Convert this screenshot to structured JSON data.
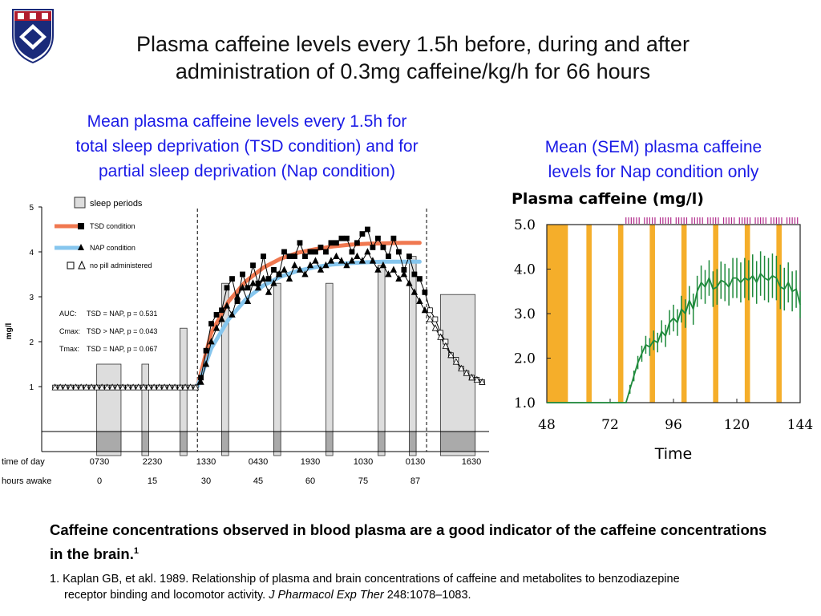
{
  "title": {
    "line1": "Plasma caffeine levels every 1.5h before, during and after",
    "line2": "administration of 0.3mg caffeine/kg/h for 66 hours"
  },
  "left_subtitle": {
    "line1": "Mean plasma caffeine levels every 1.5h for",
    "line2": "total sleep deprivation (TSD condition) and for",
    "line3": "partial sleep deprivation (Nap condition)"
  },
  "right_subtitle": {
    "line1": "Mean (SEM) plasma caffeine",
    "line2": "levels for Nap condition only"
  },
  "colors": {
    "title_text": "#111111",
    "subtitle_blue": "#1a1ae6",
    "tsd_fit": "#f07850",
    "nap_fit": "#86c6ee",
    "sleep_box": "#dddddd",
    "nap_bar": "#f5ae2a",
    "nap_line": "#1f8a3c",
    "tick_marks": "#b02a8a"
  },
  "chart_data": [
    {
      "type": "line",
      "ylabel": "mg/l",
      "ylim": [
        0,
        5
      ],
      "yticks": [
        "1",
        "2",
        "3",
        "4",
        "5"
      ],
      "xlim_hours_awake": [
        -22,
        105
      ],
      "legend": {
        "sleep": "sleep periods",
        "tsd": "TSD condition",
        "nap": "NAP condition",
        "nopill": "no pill administered",
        "placement": "top-left"
      },
      "stats": [
        {
          "label": "AUC:",
          "text": "TSD = NAP,  p = 0.531"
        },
        {
          "label": "Cmax:",
          "text": "TSD > NAP,  p = 0.043"
        },
        {
          "label": "Tmax:",
          "text": "TSD = NAP,  p = 0.067"
        }
      ],
      "time_of_day_label": "time of day",
      "time_of_day": [
        "0730",
        "2230",
        "1330",
        "0430",
        "1930",
        "1030",
        "0130",
        "1630"
      ],
      "hours_awake_label": "hours awake",
      "hours_awake": [
        "0",
        "15",
        "30",
        "45",
        "60",
        "75",
        "87",
        ""
      ],
      "sleep_periods_hours": [
        [
          -8,
          -1
        ],
        [
          5,
          7
        ],
        [
          16,
          18
        ],
        [
          28,
          30
        ],
        [
          43,
          45
        ],
        [
          58,
          60
        ],
        [
          73,
          75
        ],
        [
          82,
          84
        ],
        [
          91,
          101
        ]
      ],
      "dosing_window_hours": [
        21,
        87
      ],
      "tsd_series": {
        "x": [
          -20,
          -18.5,
          -17,
          -15.5,
          -14,
          -12.5,
          -11,
          -9.5,
          -8,
          -6.5,
          -5,
          -3.5,
          -2,
          -0.5,
          1,
          2.5,
          4,
          5.5,
          7,
          8.5,
          10,
          11.5,
          13,
          14.5,
          16,
          17.5,
          19,
          20.5,
          22,
          23.5,
          25,
          26.5,
          28,
          29.5,
          31,
          32.5,
          34,
          35.5,
          37,
          38.5,
          40,
          41.5,
          43,
          44.5,
          46,
          47.5,
          49,
          50.5,
          52,
          53.5,
          55,
          56.5,
          58,
          59.5,
          61,
          62.5,
          64,
          65.5,
          67,
          68.5,
          70,
          71.5,
          73,
          74.5,
          76,
          77.5,
          79,
          80.5,
          82,
          83.5,
          85,
          86.5,
          88,
          89.5,
          91,
          92.5,
          94,
          95.5,
          97,
          98.5,
          100,
          101.5,
          103
        ],
        "y": [
          0.98,
          0.98,
          0.98,
          0.98,
          0.98,
          0.98,
          0.98,
          0.98,
          0.98,
          0.98,
          0.98,
          0.98,
          0.98,
          0.98,
          0.98,
          0.98,
          0.98,
          0.98,
          0.98,
          0.98,
          0.98,
          0.98,
          0.98,
          0.98,
          0.98,
          0.98,
          0.98,
          0.98,
          1.2,
          1.8,
          2.4,
          2.6,
          2.7,
          3.2,
          3.4,
          2.9,
          3.5,
          3.2,
          3.7,
          3.3,
          3.9,
          3.4,
          3.6,
          3.5,
          4.0,
          3.9,
          3.9,
          4.2,
          3.9,
          4.0,
          4.0,
          4.1,
          4.0,
          4.2,
          4.2,
          4.3,
          4.3,
          4.0,
          4.2,
          4.4,
          4.5,
          4.1,
          4.3,
          4.1,
          3.9,
          4.3,
          4.0,
          3.6,
          3.9,
          3.5,
          3.4,
          3.1,
          2.7,
          2.5,
          2.2,
          2.0,
          1.7,
          1.6,
          1.4,
          1.3,
          1.2,
          1.15,
          1.1
        ]
      },
      "nap_series": {
        "x": [
          -20,
          -18.5,
          -17,
          -15.5,
          -14,
          -12.5,
          -11,
          -9.5,
          -8,
          -6.5,
          -5,
          -3.5,
          -2,
          -0.5,
          1,
          2.5,
          4,
          5.5,
          7,
          8.5,
          10,
          11.5,
          13,
          14.5,
          16,
          17.5,
          19,
          20.5,
          22,
          23.5,
          25,
          26.5,
          28,
          29.5,
          31,
          32.5,
          34,
          35.5,
          37,
          38.5,
          40,
          41.5,
          43,
          44.5,
          46,
          47.5,
          49,
          50.5,
          52,
          53.5,
          55,
          56.5,
          58,
          59.5,
          61,
          62.5,
          64,
          65.5,
          67,
          68.5,
          70,
          71.5,
          73,
          74.5,
          76,
          77.5,
          79,
          80.5,
          82,
          83.5,
          85,
          86.5,
          88,
          89.5,
          91,
          92.5,
          94,
          95.5,
          97,
          98.5,
          100,
          101.5,
          103
        ],
        "y": [
          0.98,
          0.98,
          0.98,
          0.98,
          0.98,
          0.98,
          0.98,
          0.98,
          0.98,
          0.98,
          0.98,
          0.98,
          0.98,
          0.98,
          0.98,
          0.98,
          0.98,
          0.98,
          0.98,
          0.98,
          0.98,
          0.98,
          0.98,
          0.98,
          0.98,
          0.98,
          0.98,
          0.98,
          1.1,
          1.5,
          2.0,
          2.3,
          2.5,
          2.8,
          2.6,
          3.0,
          3.2,
          2.9,
          3.3,
          3.2,
          3.4,
          3.1,
          3.3,
          3.5,
          3.6,
          3.4,
          3.7,
          3.6,
          3.5,
          3.7,
          3.8,
          3.6,
          3.7,
          3.8,
          3.9,
          3.8,
          3.7,
          3.8,
          3.9,
          3.8,
          4.0,
          3.8,
          3.6,
          3.7,
          3.5,
          3.6,
          3.4,
          3.5,
          3.3,
          3.1,
          2.9,
          2.7,
          2.5,
          2.3,
          2.1,
          1.9,
          1.7,
          1.55,
          1.4,
          1.3,
          1.2,
          1.15,
          1.1
        ]
      },
      "tsd_fit": {
        "x": [
          21,
          25,
          30,
          35,
          40,
          45,
          50,
          55,
          60,
          65,
          70,
          75,
          80,
          85
        ],
        "y": [
          1.0,
          2.2,
          2.9,
          3.35,
          3.65,
          3.85,
          3.98,
          4.06,
          4.12,
          4.16,
          4.18,
          4.19,
          4.2,
          4.2
        ]
      },
      "nap_fit": {
        "x": [
          21,
          25,
          30,
          35,
          40,
          45,
          50,
          55,
          60,
          65,
          70,
          75,
          80,
          85
        ],
        "y": [
          1.0,
          1.85,
          2.5,
          2.95,
          3.25,
          3.45,
          3.58,
          3.66,
          3.72,
          3.75,
          3.77,
          3.78,
          3.78,
          3.78
        ]
      }
    },
    {
      "type": "line",
      "title": "Plasma caffeine (mg/l)",
      "xlabel": "Time",
      "xlim": [
        48,
        144
      ],
      "ylim": [
        1.0,
        5.0
      ],
      "xticks": [
        "48",
        "72",
        "96",
        "120",
        "144"
      ],
      "yticks": [
        "1.0",
        "2.0",
        "3.0",
        "4.0",
        "5.0"
      ],
      "grid": false,
      "sleep_bars": [
        [
          48,
          56
        ],
        [
          63,
          65
        ],
        [
          75,
          77
        ],
        [
          87,
          89
        ],
        [
          99,
          101
        ],
        [
          111,
          113
        ],
        [
          123,
          125
        ],
        [
          135,
          137
        ]
      ],
      "tick_marks_x": [
        78,
        79,
        80,
        81,
        82,
        83,
        85,
        86,
        87,
        88,
        89,
        91,
        92,
        93,
        94,
        95,
        97,
        98,
        99,
        100,
        101,
        103,
        104,
        105,
        106,
        107,
        109,
        110,
        111,
        112,
        113,
        115,
        116,
        117,
        118,
        119,
        121,
        122,
        123,
        124,
        125,
        127,
        128,
        129,
        130,
        131,
        133,
        134,
        135,
        136,
        137,
        139,
        140,
        141,
        142,
        143
      ],
      "series": {
        "x": [
          48,
          78,
          79.5,
          81,
          82.5,
          84,
          85.5,
          87,
          88.5,
          90,
          91.5,
          93,
          94.5,
          96,
          97.5,
          99,
          100.5,
          102,
          103.5,
          105,
          106.5,
          108,
          109.5,
          111,
          112.5,
          114,
          115.5,
          117,
          118.5,
          120,
          121.5,
          123,
          124.5,
          126,
          127.5,
          129,
          130.5,
          132,
          133.5,
          135,
          136.5,
          138,
          139.5,
          141,
          142.5,
          144
        ],
        "y": [
          1.0,
          1.0,
          1.3,
          1.6,
          1.9,
          2.1,
          2.3,
          2.25,
          2.4,
          2.35,
          2.6,
          2.5,
          2.8,
          2.9,
          2.8,
          3.1,
          3.0,
          3.3,
          3.1,
          3.5,
          3.7,
          3.6,
          3.8,
          3.55,
          3.6,
          3.75,
          3.7,
          3.6,
          3.8,
          3.8,
          3.7,
          3.8,
          3.75,
          3.85,
          3.7,
          3.9,
          3.8,
          3.75,
          3.85,
          3.8,
          3.6,
          3.55,
          3.7,
          3.5,
          3.55,
          3.2
        ]
      },
      "sem": [
        0,
        0,
        0.1,
        0.12,
        0.15,
        0.18,
        0.2,
        0.2,
        0.22,
        0.22,
        0.25,
        0.25,
        0.28,
        0.3,
        0.3,
        0.3,
        0.32,
        0.32,
        0.35,
        0.35,
        0.38,
        0.38,
        0.4,
        0.4,
        0.4,
        0.42,
        0.42,
        0.42,
        0.45,
        0.45,
        0.45,
        0.45,
        0.45,
        0.48,
        0.48,
        0.5,
        0.5,
        0.5,
        0.5,
        0.5,
        0.5,
        0.48,
        0.45,
        0.45,
        0.42,
        0.3
      ]
    }
  ],
  "footnote": {
    "text": "Caffeine concentrations observed in blood plasma are a good indicator of the caffeine concentrations in the brain.",
    "sup": "1"
  },
  "reference": {
    "line1": "1. Kaplan GB, et akl. 1989. Relationship of plasma and brain concentrations of caffeine and metabolites to benzodiazepine",
    "line2_plain": "receptor binding and locomotor activity.",
    "journal": "J Pharmacol Exp Ther",
    "tail": "248:1078–1083."
  }
}
